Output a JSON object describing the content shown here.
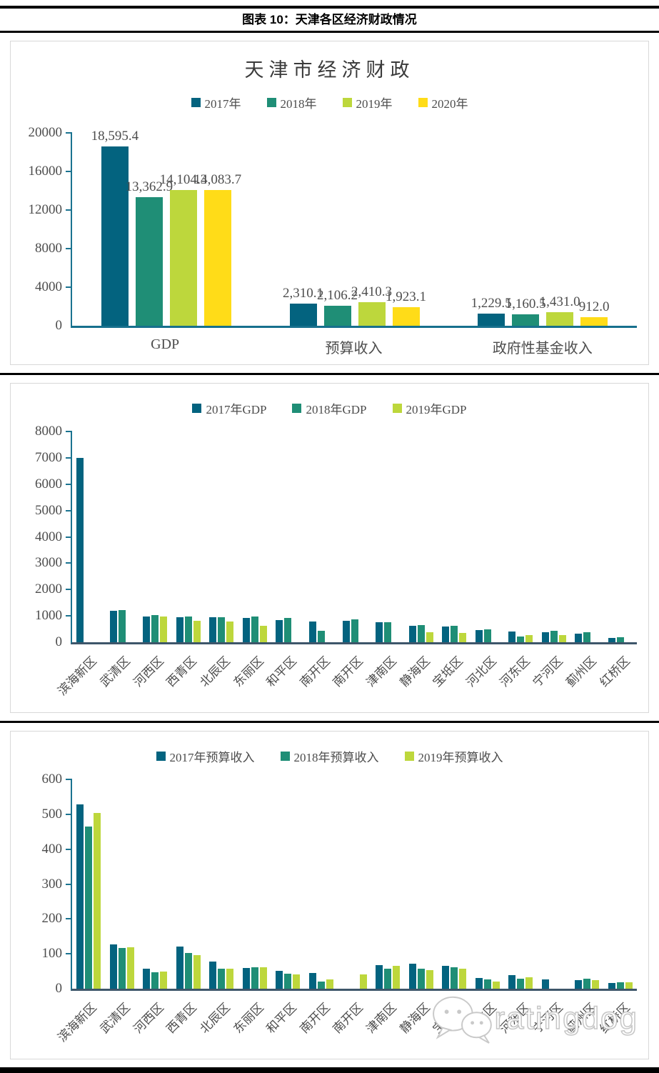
{
  "header": {
    "title": "图表 10：天津各区经济财政情况"
  },
  "watermark": {
    "text": "ratingdog",
    "icon": "wechat-logo"
  },
  "colors": {
    "series_2017": "#03637F",
    "series_2018": "#1F8E76",
    "series_2019": "#BDD73C",
    "series_2020": "#FFDC18",
    "axis_teal": "#1A7390",
    "baseline_slate": "#3E566A",
    "text_gray": "#4D4D4D"
  },
  "chart_data": [
    {
      "id": "tianjin-summary",
      "type": "bar",
      "title": "天津市经济财政",
      "legend_position": "top",
      "grid": false,
      "categories": [
        "GDP",
        "预算收入",
        "政府性基金收入"
      ],
      "series": [
        {
          "name": "2017年",
          "color": "#03637F",
          "values": [
            18595.4,
            2310.1,
            1229.5
          ]
        },
        {
          "name": "2018年",
          "color": "#1F8E76",
          "values": [
            13362.9,
            2106.2,
            1160.5
          ]
        },
        {
          "name": "2019年",
          "color": "#BDD73C",
          "values": [
            14104.3,
            2410.3,
            1431.0
          ]
        },
        {
          "name": "2020年",
          "color": "#FFDC18",
          "values": [
            14083.7,
            1923.1,
            912.0
          ]
        }
      ],
      "value_labels": [
        [
          "18,595.4",
          "2,310.1",
          "1,229.5"
        ],
        [
          "13,362.9",
          "2,106.2",
          "1,160.5"
        ],
        [
          "14,104.3",
          "2,410.3",
          "1,431.0"
        ],
        [
          "14,083.7",
          "1,923.1",
          "912.0"
        ]
      ],
      "ylim": [
        0,
        20000
      ],
      "yticks": [
        0,
        4000,
        8000,
        12000,
        16000,
        20000
      ],
      "axis_color": "#1A7390",
      "baseline_color": "#17708D"
    },
    {
      "id": "gdp-by-district",
      "type": "bar",
      "title": "",
      "legend_position": "top",
      "grid": false,
      "categories": [
        "滨海新区",
        "武清区",
        "河西区",
        "西青区",
        "北辰区",
        "东丽区",
        "和平区",
        "南开区",
        "南开区",
        "津南区",
        "静海区",
        "宝坻区",
        "河北区",
        "河东区",
        "宁河区",
        "蓟州区",
        "红桥区"
      ],
      "series": [
        {
          "name": "2017年GDP",
          "color": "#03637F",
          "values": [
            7000,
            1200,
            980,
            955,
            950,
            930,
            840,
            790,
            810,
            765,
            625,
            585,
            460,
            405,
            370,
            335,
            160
          ]
        },
        {
          "name": "2018年GDP",
          "color": "#1F8E76",
          "values": [
            null,
            1230,
            1035,
            990,
            945,
            970,
            910,
            430,
            880,
            760,
            655,
            630,
            495,
            210,
            430,
            370,
            190
          ]
        },
        {
          "name": "2019年GDP",
          "color": "#BDD73C",
          "values": [
            null,
            null,
            975,
            825,
            800,
            615,
            null,
            null,
            null,
            null,
            370,
            340,
            null,
            280,
            270,
            null,
            null
          ]
        }
      ],
      "ylim": [
        0,
        8000
      ],
      "yticks": [
        0,
        1000,
        2000,
        3000,
        4000,
        5000,
        6000,
        7000,
        8000
      ],
      "axis_color": "#1A7390",
      "baseline_color": "#3E566A"
    },
    {
      "id": "budget-revenue-by-district",
      "type": "bar",
      "title": "",
      "legend_position": "top",
      "grid": false,
      "categories": [
        "滨海新区",
        "武清区",
        "河西区",
        "西青区",
        "北辰区",
        "东丽区",
        "和平区",
        "南开区",
        "南开区",
        "津南区",
        "静海区",
        "宝坻区",
        "河北区",
        "河东区",
        "宁河区",
        "蓟州区",
        "红桥区"
      ],
      "series": [
        {
          "name": "2017年预算收入",
          "color": "#03637F",
          "values": [
            529,
            127,
            57,
            120,
            78,
            59,
            52,
            46,
            null,
            68,
            71,
            65,
            31,
            38,
            26,
            25,
            16
          ]
        },
        {
          "name": "2018年预算收入",
          "color": "#1F8E76",
          "values": [
            464,
            116,
            48,
            103,
            58,
            61,
            43,
            20,
            null,
            58,
            57,
            61,
            27,
            29,
            null,
            29,
            18
          ]
        },
        {
          "name": "2019年预算收入",
          "color": "#BDD73C",
          "values": [
            503,
            118,
            50,
            97,
            57,
            62,
            40,
            26,
            40,
            65,
            53,
            57,
            21,
            32,
            null,
            25,
            19
          ]
        }
      ],
      "ylim": [
        0,
        600
      ],
      "yticks": [
        0,
        100,
        200,
        300,
        400,
        500,
        600
      ],
      "axis_color": "#1A7390",
      "baseline_color": "#3E566A"
    }
  ]
}
